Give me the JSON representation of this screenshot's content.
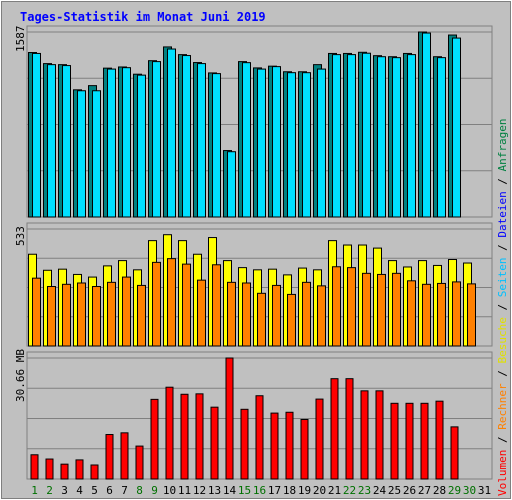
{
  "title": "Tages-Statistik im Monat Juni 2019",
  "legend": [
    {
      "label": "Volumen",
      "color": "#ff0000"
    },
    {
      "label": "Rechner",
      "color": "#ff8000"
    },
    {
      "label": "Besuche",
      "color": "#e0e000"
    },
    {
      "label": "Seiten",
      "color": "#00c0ff"
    },
    {
      "label": "Dateien",
      "color": "#0000ff"
    },
    {
      "label": "Anfragen",
      "color": "#008040"
    }
  ],
  "legend_separator": " / ",
  "chart_data": [
    {
      "type": "bar",
      "name_hint": "top",
      "ylabel_text": "1587",
      "ymax": 1587,
      "series": [
        {
          "name": "Anfragen",
          "color": "#008080",
          "values": [
            1411,
            1316,
            1307,
            1091,
            1127,
            1277,
            1287,
            1225,
            1341,
            1459,
            1393,
            1325,
            1236,
            570,
            1333,
            1279,
            1294,
            1246,
            1246,
            1307,
            1403,
            1403,
            1413,
            1384,
            1375,
            1403,
            1587,
            1375,
            1561,
            null,
            null
          ]
        },
        {
          "name": "Seiten",
          "color": "#00e0ff",
          "values": [
            1403,
            1307,
            1299,
            1083,
            1083,
            1269,
            1281,
            1217,
            1333,
            1441,
            1385,
            1316,
            1230,
            560,
            1324,
            1269,
            1290,
            1238,
            1238,
            1269,
            1393,
            1393,
            1405,
            1375,
            1367,
            1393,
            1578,
            1367,
            1535,
            null,
            null
          ]
        }
      ]
    },
    {
      "type": "bar",
      "name_hint": "middle",
      "ylabel_text": "533",
      "ymax": 533,
      "series": [
        {
          "name": "Besuche",
          "color": "#ffff00",
          "values": [
            418,
            345,
            350,
            326,
            314,
            365,
            389,
            347,
            480,
            507,
            480,
            418,
            494,
            389,
            357,
            347,
            350,
            324,
            355,
            347,
            480,
            460,
            460,
            446,
            389,
            360,
            389,
            367,
            394,
            378,
            null
          ]
        },
        {
          "name": "Rechner",
          "color": "#ff8000",
          "values": [
            309,
            271,
            281,
            287,
            271,
            290,
            314,
            276,
            381,
            398,
            373,
            300,
            370,
            290,
            287,
            240,
            276,
            235,
            290,
            274,
            361,
            357,
            331,
            326,
            331,
            297,
            281,
            285,
            292,
            283,
            null
          ]
        }
      ]
    },
    {
      "type": "bar",
      "name_hint": "bottom",
      "ylabel_text": "30.66 MB",
      "ymax": 30.66,
      "series": [
        {
          "name": "Volumen",
          "color": "#ff0000",
          "values": [
            6.14,
            5.06,
            3.76,
            4.84,
            3.55,
            11.27,
            11.7,
            8.34,
            20.18,
            23.26,
            21.47,
            21.58,
            18.2,
            30.66,
            17.66,
            21.1,
            16.7,
            16.91,
            15.08,
            20.25,
            25.42,
            25.42,
            22.34,
            22.34,
            19.18,
            19.18,
            19.18,
            19.72,
            13.21,
            null,
            null
          ]
        }
      ]
    }
  ],
  "days": [
    {
      "label": "1",
      "color": "#007000"
    },
    {
      "label": "2",
      "color": "#007000"
    },
    {
      "label": "3",
      "color": "#000000"
    },
    {
      "label": "4",
      "color": "#000000"
    },
    {
      "label": "5",
      "color": "#000000"
    },
    {
      "label": "6",
      "color": "#000000"
    },
    {
      "label": "7",
      "color": "#000000"
    },
    {
      "label": "8",
      "color": "#007000"
    },
    {
      "label": "9",
      "color": "#007000"
    },
    {
      "label": "10",
      "color": "#000000"
    },
    {
      "label": "11",
      "color": "#000000"
    },
    {
      "label": "12",
      "color": "#000000"
    },
    {
      "label": "13",
      "color": "#000000"
    },
    {
      "label": "14",
      "color": "#000000"
    },
    {
      "label": "15",
      "color": "#007000"
    },
    {
      "label": "16",
      "color": "#007000"
    },
    {
      "label": "17",
      "color": "#000000"
    },
    {
      "label": "18",
      "color": "#000000"
    },
    {
      "label": "19",
      "color": "#000000"
    },
    {
      "label": "20",
      "color": "#000000"
    },
    {
      "label": "21",
      "color": "#000000"
    },
    {
      "label": "22",
      "color": "#007000"
    },
    {
      "label": "23",
      "color": "#007000"
    },
    {
      "label": "24",
      "color": "#000000"
    },
    {
      "label": "25",
      "color": "#000000"
    },
    {
      "label": "26",
      "color": "#000000"
    },
    {
      "label": "27",
      "color": "#000000"
    },
    {
      "label": "28",
      "color": "#000000"
    },
    {
      "label": "29",
      "color": "#007000"
    },
    {
      "label": "30",
      "color": "#007000"
    },
    {
      "label": "31",
      "color": "#000000"
    }
  ]
}
